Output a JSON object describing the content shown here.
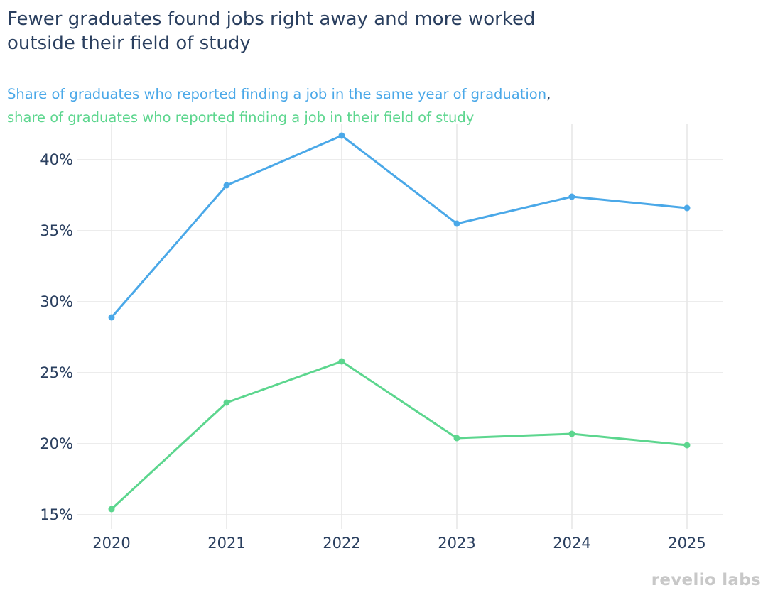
{
  "title_line1": "Fewer graduates found jobs right away and more worked",
  "title_line2": "outside their field of study",
  "subtitle": {
    "series_a_text": "Share of graduates who reported finding a job in the same year of graduation",
    "separator": ",",
    "series_b_text": "share of graduates who reported finding a job in their field of study"
  },
  "brand": "revelio labs",
  "chart_data": {
    "type": "line",
    "title": "Fewer graduates found jobs right away and more worked outside their field of study",
    "x": [
      "2020",
      "2021",
      "2022",
      "2023",
      "2024",
      "2025"
    ],
    "ylim": [
      14,
      42.5
    ],
    "yticks": [
      15,
      20,
      25,
      30,
      35,
      40
    ],
    "ytick_labels": [
      "15%",
      "20%",
      "25%",
      "30%",
      "35%",
      "40%"
    ],
    "grid": true,
    "series": [
      {
        "name": "Share of graduates who reported finding a job in the same year of graduation",
        "color": "#4aa8e8",
        "values": [
          28.9,
          38.2,
          41.7,
          35.5,
          37.4,
          36.6
        ]
      },
      {
        "name": "share of graduates who reported finding a job in their field of study",
        "color": "#5cd68e",
        "values": [
          15.4,
          22.9,
          25.8,
          20.4,
          20.7,
          19.9
        ]
      }
    ]
  }
}
